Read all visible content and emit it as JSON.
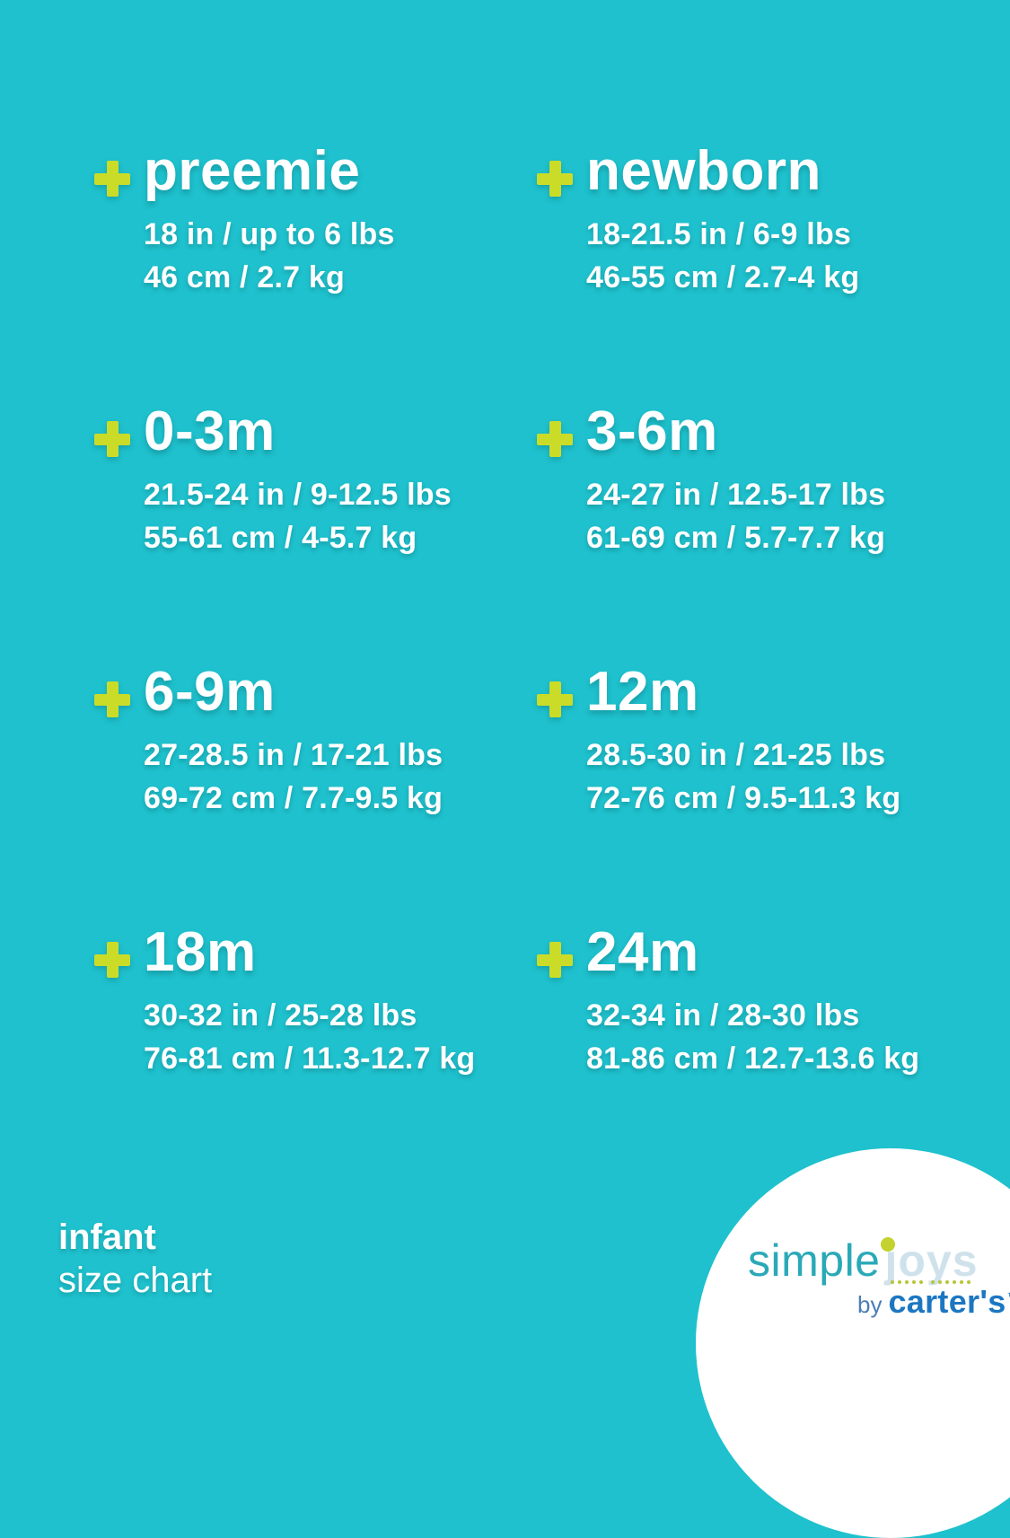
{
  "colors": {
    "background": "#1ec1cd",
    "plus_accent": "#cbdc28",
    "text": "#ffffff",
    "logo_simple": "#2aa9b8",
    "logo_joys": "#cfe2ec",
    "logo_dot": "#c3d22e",
    "logo_by": "#4a7db5",
    "logo_carters": "#1c77c2"
  },
  "entries": [
    {
      "label": "preemie",
      "imperial": "18 in / up to 6 lbs",
      "metric": "46 cm / 2.7 kg"
    },
    {
      "label": "newborn",
      "imperial": "18-21.5 in / 6-9 lbs",
      "metric": "46-55 cm / 2.7-4 kg"
    },
    {
      "label": "0-3m",
      "imperial": "21.5-24 in / 9-12.5 lbs",
      "metric": "55-61 cm / 4-5.7 kg"
    },
    {
      "label": "3-6m",
      "imperial": "24-27 in / 12.5-17 lbs",
      "metric": "61-69 cm / 5.7-7.7 kg"
    },
    {
      "label": "6-9m",
      "imperial": "27-28.5 in / 17-21 lbs",
      "metric": "69-72 cm / 7.7-9.5 kg"
    },
    {
      "label": "12m",
      "imperial": "28.5-30 in / 21-25 lbs",
      "metric": "72-76 cm / 9.5-11.3 kg"
    },
    {
      "label": "18m",
      "imperial": "30-32 in / 25-28 lbs",
      "metric": "76-81 cm / 11.3-12.7 kg"
    },
    {
      "label": "24m",
      "imperial": "32-34 in / 28-30 lbs",
      "metric": "81-86 cm / 12.7-13.6 kg"
    }
  ],
  "footer": {
    "category": "infant",
    "title": "size chart"
  },
  "logo": {
    "simple": "simple",
    "joys": "joys",
    "by": "by",
    "brand": "carter's",
    "trademark": "™"
  }
}
